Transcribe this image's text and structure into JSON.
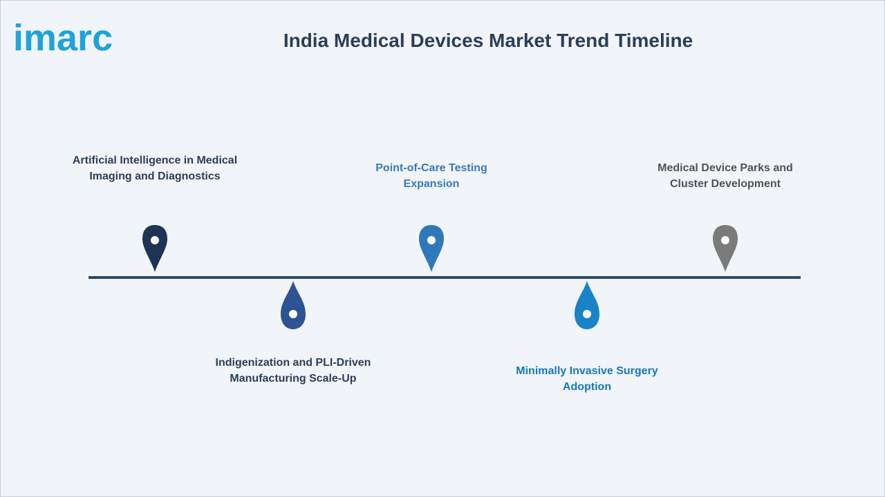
{
  "header": {
    "logo_text": "imarc",
    "title": "India Medical Devices Market Trend Timeline"
  },
  "colors": {
    "title": "#2b3e57",
    "line": "#2f4a60",
    "logo": "#1fa3d9"
  },
  "timeline": {
    "items": [
      {
        "label": "Artificial Intelligence in Medical Imaging and Diagnostics",
        "color": "#1f3354",
        "text_color": "#2b3e57"
      },
      {
        "label": "Indigenization and PLI-Driven Manufacturing Scale-Up",
        "color": "#2e5392",
        "text_color": "#2b3e57"
      },
      {
        "label": "Point-of-Care Testing Expansion",
        "color": "#2f78b9",
        "text_color": "#3a7bb4"
      },
      {
        "label": "Minimally Invasive Surgery Adoption",
        "color": "#1883c7",
        "text_color": "#1878b5"
      },
      {
        "label": "Medical Device Parks and Cluster Development",
        "color": "#7a7a7a",
        "text_color": "#4f5257"
      }
    ]
  }
}
